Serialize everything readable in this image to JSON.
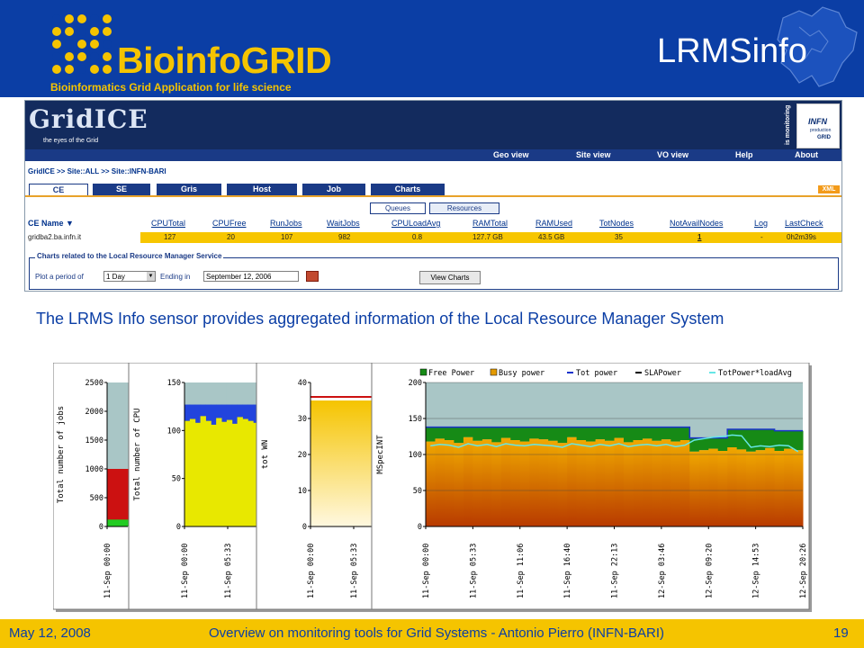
{
  "slide": {
    "title": "LRMSinfo",
    "logo_title": "BioinfoGRID",
    "logo_subtitle": "Bioinformatics Grid Application for life science",
    "description": "The LRMS Info sensor provides aggregated information of the Local Resource Manager System",
    "footer": {
      "date": "May 12, 2008",
      "center": "Overview on monitoring tools for Grid Systems - Antonio Pierro (INFN-BARI)",
      "page": "19"
    }
  },
  "gridice": {
    "logo": "GridICE",
    "tagline": "the eyes of the Grid",
    "is_monitoring": "is monitoring",
    "infn": {
      "name": "INFN",
      "line2": "production",
      "line3": "GRID"
    },
    "top_nav": [
      "Geo view",
      "Site view",
      "VO view",
      "Help",
      "About"
    ],
    "breadcrumb": "GridICE >> Site::ALL >> Site::INFN-BARI",
    "tabs": [
      "CE",
      "SE",
      "Gris",
      "Host",
      "Job",
      "Charts"
    ],
    "active_tab": "CE",
    "xml_label": "XML",
    "subtabs": [
      "Queues",
      "Resources"
    ],
    "active_subtab": "Resources",
    "table": {
      "headers": [
        "CE Name ▼",
        "CPUTotal",
        "CPUFree",
        "RunJobs",
        "WaitJobs",
        "CPULoadAvg",
        "RAMTotal",
        "RAMUsed",
        "TotNodes",
        "NotAvailNodes",
        "Log",
        "LastCheck"
      ],
      "row": [
        "gridba2.ba.infn.it",
        "127",
        "20",
        "107",
        "982",
        "0.8",
        "127.7 GB",
        "43.5 GB",
        "35",
        "1",
        "-",
        "0h2m39s"
      ]
    },
    "charts_form": {
      "legend": "Charts related to the Local Resource Manager Service",
      "plot_label": "Plot a period of",
      "period": "1 Day",
      "ending_label": "Ending in",
      "ending_date": "September 12, 2006",
      "button": "View Charts"
    }
  },
  "chart_data": [
    {
      "type": "area",
      "ylabel": "Total number of jobs",
      "ylim": [
        0,
        2500
      ],
      "yticks": [
        "0",
        "500",
        "1000",
        "1500",
        "2000",
        "2500"
      ],
      "xticks": [
        "11-Sep 00:00"
      ],
      "series": [
        {
          "values": [
            120,
            120
          ]
        },
        {
          "values": [
            1000,
            1000
          ]
        },
        {
          "values": [
            2500,
            2500
          ]
        }
      ],
      "colors": [
        "#22cc22",
        "#cc1111",
        "#a9c6c6"
      ]
    },
    {
      "type": "area",
      "ylabel": "Total number of CPU",
      "ylim": [
        0,
        150
      ],
      "yticks": [
        "0",
        "50",
        "100",
        "150"
      ],
      "xticks": [
        "11-Sep 00:00",
        "11-Sep 05:33"
      ],
      "series": [
        {
          "values": [
            110,
            112,
            108,
            115,
            110,
            106,
            113,
            109,
            111,
            107,
            114,
            112,
            110,
            108
          ]
        },
        {
          "values": [
            127,
            127,
            127,
            127,
            127,
            127,
            127,
            127,
            127,
            127,
            127,
            127,
            127,
            127
          ]
        },
        {
          "values": [
            150,
            150,
            150,
            150,
            150,
            150,
            150,
            150,
            150,
            150,
            150,
            150,
            150,
            150
          ]
        }
      ],
      "colors": [
        "#e8e800",
        "#2244dd",
        "#a9c6c6"
      ]
    },
    {
      "type": "area",
      "ylabel": "tot WN",
      "ylim": [
        0,
        40
      ],
      "yticks": [
        "0",
        "10",
        "20",
        "30",
        "40"
      ],
      "xticks": [
        "11-Sep 00:00",
        "11-Sep 05:33"
      ],
      "series": [
        {
          "values": [
            35,
            35
          ]
        },
        {
          "values": [
            36,
            36
          ]
        }
      ],
      "colors": [
        "#f5c400",
        "#cc1111"
      ]
    },
    {
      "type": "area",
      "ylabel": "MSpecINT",
      "ylim": [
        0,
        200
      ],
      "yticks": [
        "0",
        "50",
        "100",
        "150",
        "200"
      ],
      "xticks": [
        "11-Sep 00:00",
        "11-Sep 05:33",
        "11-Sep 11:06",
        "11-Sep 16:40",
        "11-Sep 22:13",
        "12-Sep 03:46",
        "12-Sep 09:20",
        "12-Sep 14:53",
        "12-Sep 20:26"
      ],
      "legend": [
        "Free Power",
        "Busy power",
        "Tot power",
        "SLAPower",
        "TotPower*loadAvg"
      ],
      "series": [
        {
          "name": "Busy power",
          "values": [
            118,
            122,
            120,
            116,
            124,
            119,
            121,
            117,
            123,
            120,
            118,
            122,
            121,
            119,
            116,
            124,
            120,
            118,
            121,
            119,
            123,
            117,
            120,
            122,
            119,
            121,
            118,
            120,
            104,
            106,
            108,
            105,
            110,
            107,
            104,
            106,
            109,
            105,
            108,
            106
          ]
        },
        {
          "name": "Tot power",
          "values": [
            138,
            138,
            138,
            138,
            138,
            138,
            138,
            138,
            138,
            138,
            138,
            138,
            138,
            138,
            138,
            138,
            138,
            138,
            138,
            138,
            138,
            138,
            138,
            138,
            138,
            138,
            138,
            138,
            123,
            123,
            123,
            123,
            135,
            135,
            135,
            135,
            135,
            133,
            133,
            133
          ]
        },
        {
          "name": "TotPower*loadAvg",
          "values": [
            112,
            114,
            113,
            110,
            115,
            112,
            114,
            111,
            115,
            113,
            112,
            114,
            113,
            112,
            110,
            115,
            113,
            111,
            114,
            112,
            115,
            111,
            113,
            114,
            112,
            114,
            111,
            113,
            120,
            122,
            124,
            125,
            127,
            126,
            110,
            112,
            111,
            113,
            112,
            104
          ]
        }
      ],
      "colors": {
        "free": "#168a16",
        "busy": "#e39a00",
        "tot": "#1a33cc",
        "load": "#66e6e6",
        "plot_bg": "#a9c6c6"
      }
    }
  ]
}
